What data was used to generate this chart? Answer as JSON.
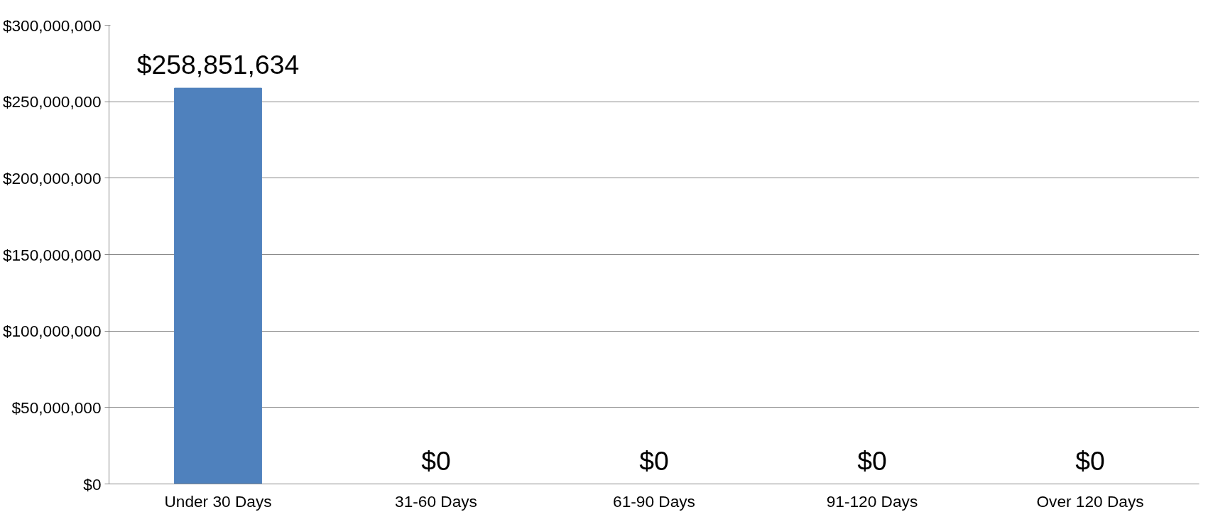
{
  "chart_data": {
    "type": "bar",
    "categories": [
      "Under 30 Days",
      "31-60 Days",
      "61-90 Days",
      "91-120 Days",
      "Over 120 Days"
    ],
    "values": [
      258851634,
      0,
      0,
      0,
      0
    ],
    "value_labels": [
      "$258,851,634",
      "$0",
      "$0",
      "$0",
      "$0"
    ],
    "color": "#4f81bd",
    "ylim": [
      0,
      300000000
    ],
    "yticks": [
      {
        "value": 0,
        "label": "$0"
      },
      {
        "value": 50000000,
        "label": "$50,000,000"
      },
      {
        "value": 100000000,
        "label": "$100,000,000"
      },
      {
        "value": 150000000,
        "label": "$150,000,000"
      },
      {
        "value": 200000000,
        "label": "$200,000,000"
      },
      {
        "value": 250000000,
        "label": "$250,000,000"
      },
      {
        "value": 300000000,
        "label": "$300,000,000"
      }
    ],
    "grid": "y"
  }
}
